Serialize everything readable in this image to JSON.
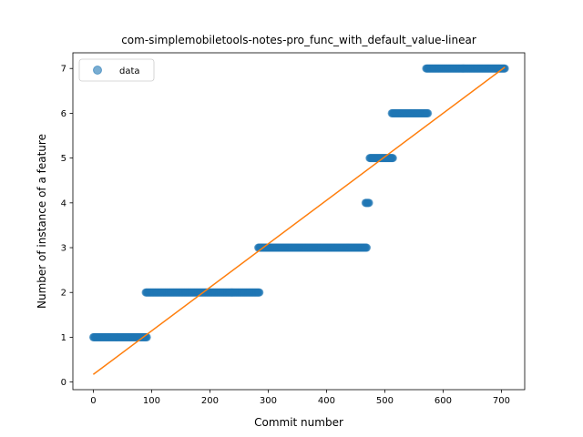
{
  "chart_data": {
    "type": "scatter",
    "title": "com-simplemobiletools-notes-pro_func_with_default_value-linear",
    "xlabel": "Commit number",
    "ylabel": "Number of instance of a feature",
    "xlim": [
      -35,
      740
    ],
    "ylim": [
      -0.17,
      7.35
    ],
    "xticks": [
      0,
      100,
      200,
      300,
      400,
      500,
      600,
      700
    ],
    "yticks": [
      0,
      1,
      2,
      3,
      4,
      5,
      6,
      7
    ],
    "grid": false,
    "legend": {
      "placement": "top-left",
      "entries": [
        "data"
      ]
    },
    "series": [
      {
        "name": "data",
        "kind": "scatter",
        "color": "#1f77b4",
        "segments": [
          {
            "x_start": 0,
            "x_end": 92,
            "y": 1
          },
          {
            "x_start": 90,
            "x_end": 285,
            "y": 2
          },
          {
            "x_start": 283,
            "x_end": 469,
            "y": 3
          },
          {
            "x_start": 467,
            "x_end": 473,
            "y": 4
          },
          {
            "x_start": 474,
            "x_end": 514,
            "y": 5
          },
          {
            "x_start": 512,
            "x_end": 574,
            "y": 6
          },
          {
            "x_start": 571,
            "x_end": 706,
            "y": 7
          }
        ]
      },
      {
        "kind": "line",
        "color": "#ff7f0e",
        "x": [
          0,
          706
        ],
        "y": [
          0.17,
          7.03
        ]
      }
    ]
  }
}
